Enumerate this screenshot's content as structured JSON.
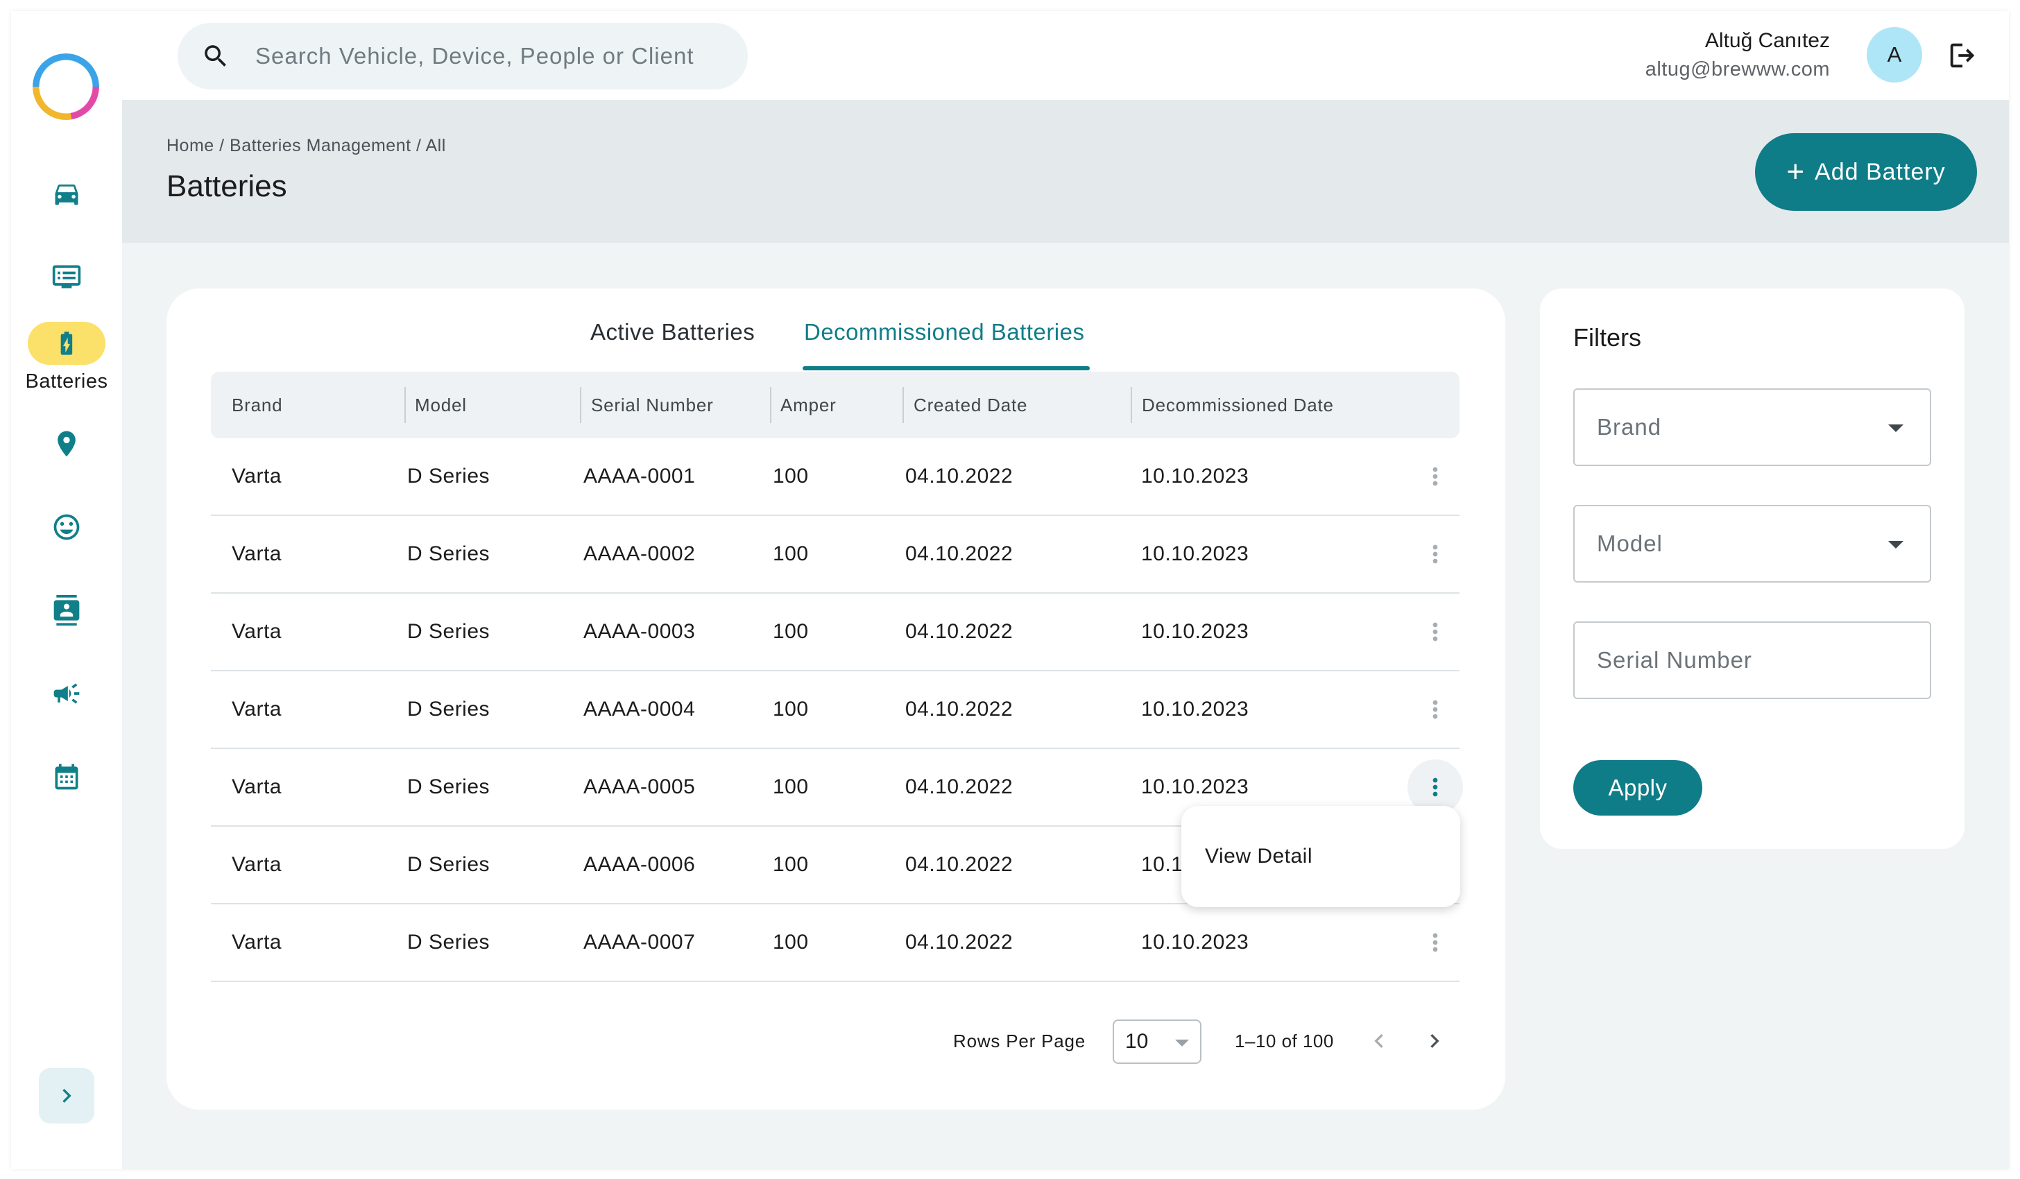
{
  "search": {
    "placeholder": "Search Vehicle, Device, People or Client"
  },
  "user": {
    "name": "Altuğ Canıtez",
    "email": "altug@brewww.com",
    "initial": "A"
  },
  "sidebar": {
    "items": [
      {
        "icon": "car-icon"
      },
      {
        "icon": "device-list-icon"
      },
      {
        "icon": "battery-icon",
        "label": "Batteries",
        "active": true
      },
      {
        "icon": "location-pin-icon"
      },
      {
        "icon": "smiley-face-icon"
      },
      {
        "icon": "contact-card-icon"
      },
      {
        "icon": "megaphone-icon"
      },
      {
        "icon": "calendar-icon"
      }
    ],
    "active_label": "Batteries"
  },
  "header": {
    "breadcrumb": "Home / Batteries Management / All",
    "title": "Batteries",
    "add_button": "Add Battery"
  },
  "tabs": [
    {
      "label": "Active Batteries",
      "active": false
    },
    {
      "label": "Decommissioned Batteries",
      "active": true
    }
  ],
  "table": {
    "columns": [
      "Brand",
      "Model",
      "Serial Number",
      "Amper",
      "Created Date",
      "Decommissioned Date"
    ],
    "rows": [
      [
        "Varta",
        "D Series",
        "AAAA-0001",
        "100",
        "04.10.2022",
        "10.10.2023"
      ],
      [
        "Varta",
        "D Series",
        "AAAA-0002",
        "100",
        "04.10.2022",
        "10.10.2023"
      ],
      [
        "Varta",
        "D Series",
        "AAAA-0003",
        "100",
        "04.10.2022",
        "10.10.2023"
      ],
      [
        "Varta",
        "D Series",
        "AAAA-0004",
        "100",
        "04.10.2022",
        "10.10.2023"
      ],
      [
        "Varta",
        "D Series",
        "AAAA-0005",
        "100",
        "04.10.2022",
        "10.10.2023"
      ],
      [
        "Varta",
        "D Series",
        "AAAA-0006",
        "100",
        "04.10.2022",
        "10.1"
      ],
      [
        "Varta",
        "D Series",
        "AAAA-0007",
        "100",
        "04.10.2022",
        "10.10.2023"
      ]
    ],
    "row_menu": {
      "item": "View Detail"
    }
  },
  "pagination": {
    "rows_per_page_label": "Rows Per Page",
    "rows_per_page": "10",
    "range": "1–10 of 100"
  },
  "filters": {
    "title": "Filters",
    "brand_placeholder": "Brand",
    "model_placeholder": "Model",
    "serial_placeholder": "Serial Number",
    "apply": "Apply"
  },
  "colors": {
    "primary": "#0f7d88",
    "active_nav": "#fbe06a",
    "avatar": "#aee6f7"
  }
}
